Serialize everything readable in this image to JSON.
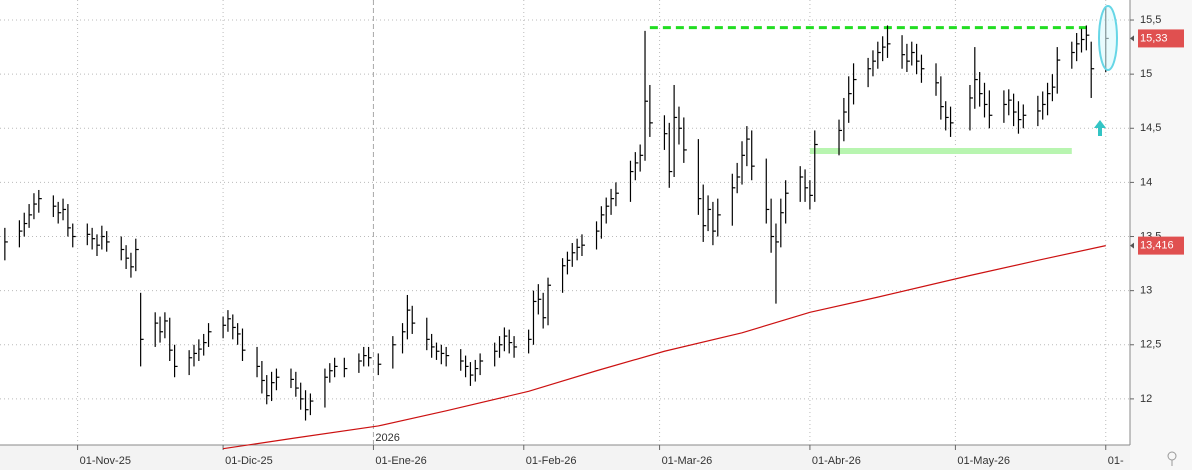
{
  "chart_data": {
    "type": "ohlc",
    "x": [
      "2025-10-17",
      "2025-10-20",
      "2025-10-21",
      "2025-10-22",
      "2025-10-23",
      "2025-10-24",
      "2025-10-27",
      "2025-10-28",
      "2025-10-29",
      "2025-10-30",
      "2025-10-31",
      "2025-11-03",
      "2025-11-04",
      "2025-11-05",
      "2025-11-06",
      "2025-11-07",
      "2025-11-10",
      "2025-11-11",
      "2025-11-12",
      "2025-11-13",
      "2025-11-14",
      "2025-11-17",
      "2025-11-18",
      "2025-11-19",
      "2025-11-20",
      "2025-11-21",
      "2025-11-24",
      "2025-11-25",
      "2025-11-26",
      "2025-11-27",
      "2025-11-28",
      "2025-12-01",
      "2025-12-02",
      "2025-12-03",
      "2025-12-04",
      "2025-12-05",
      "2025-12-08",
      "2025-12-09",
      "2025-12-10",
      "2025-12-11",
      "2025-12-12",
      "2025-12-15",
      "2025-12-16",
      "2025-12-17",
      "2025-12-18",
      "2025-12-19",
      "2025-12-22",
      "2025-12-23",
      "2025-12-24",
      "2025-12-26",
      "2025-12-29",
      "2025-12-30",
      "2025-12-31",
      "2026-01-02",
      "2026-01-05",
      "2026-01-07",
      "2026-01-08",
      "2026-01-09",
      "2026-01-12",
      "2026-01-13",
      "2026-01-14",
      "2026-01-15",
      "2026-01-16",
      "2026-01-19",
      "2026-01-20",
      "2026-01-21",
      "2026-01-22",
      "2026-01-23",
      "2026-01-26",
      "2026-01-27",
      "2026-01-28",
      "2026-01-29",
      "2026-01-30",
      "2026-02-02",
      "2026-02-03",
      "2026-02-04",
      "2026-02-05",
      "2026-02-06",
      "2026-02-09",
      "2026-02-10",
      "2026-02-11",
      "2026-02-12",
      "2026-02-13",
      "2026-02-16",
      "2026-02-17",
      "2026-02-18",
      "2026-02-19",
      "2026-02-20",
      "2026-02-23",
      "2026-02-24",
      "2026-02-25",
      "2026-02-26",
      "2026-02-27",
      "2026-03-02",
      "2026-03-03",
      "2026-03-04",
      "2026-03-05",
      "2026-03-06",
      "2026-03-09",
      "2026-03-10",
      "2026-03-11",
      "2026-03-12",
      "2026-03-13",
      "2026-03-16",
      "2026-03-17",
      "2026-03-18",
      "2026-03-19",
      "2026-03-20",
      "2026-03-23",
      "2026-03-24",
      "2026-03-25",
      "2026-03-26",
      "2026-03-27",
      "2026-03-30",
      "2026-03-31",
      "2026-04-01",
      "2026-04-02",
      "2026-04-07",
      "2026-04-08",
      "2026-04-09",
      "2026-04-10",
      "2026-04-13",
      "2026-04-14",
      "2026-04-15",
      "2026-04-16",
      "2026-04-17",
      "2026-04-20",
      "2026-04-21",
      "2026-04-22",
      "2026-04-23",
      "2026-04-24",
      "2026-04-27",
      "2026-04-28",
      "2026-04-29",
      "2026-04-30",
      "2026-05-04",
      "2026-05-05",
      "2026-05-06",
      "2026-05-07",
      "2026-05-08",
      "2026-05-11",
      "2026-05-12",
      "2026-05-13",
      "2026-05-14",
      "2026-05-15",
      "2026-05-18",
      "2026-05-19",
      "2026-05-20",
      "2026-05-21",
      "2026-05-22",
      "2026-05-25",
      "2026-05-26",
      "2026-05-27",
      "2026-05-28",
      "2026-05-29",
      "2026-06-01"
    ],
    "high": [
      13.58,
      13.65,
      13.72,
      13.8,
      13.9,
      13.93,
      13.88,
      13.82,
      13.85,
      13.8,
      13.62,
      13.62,
      13.58,
      13.52,
      13.6,
      13.55,
      13.5,
      13.42,
      13.35,
      13.48,
      12.98,
      12.8,
      12.76,
      12.8,
      12.75,
      12.5,
      12.45,
      12.5,
      12.55,
      12.6,
      12.7,
      12.76,
      12.82,
      12.78,
      12.7,
      12.65,
      12.48,
      12.35,
      12.22,
      12.25,
      12.28,
      12.28,
      12.25,
      12.15,
      12.08,
      12.05,
      12.28,
      12.33,
      12.38,
      12.38,
      12.42,
      12.48,
      12.48,
      12.42,
      12.58,
      12.7,
      12.96,
      12.86,
      12.75,
      12.6,
      12.52,
      12.5,
      12.48,
      12.46,
      12.4,
      12.34,
      12.36,
      12.42,
      12.52,
      12.58,
      12.66,
      12.64,
      12.58,
      12.64,
      13.0,
      13.06,
      12.98,
      13.12,
      13.3,
      13.36,
      13.44,
      13.48,
      13.52,
      13.64,
      13.78,
      13.86,
      13.94,
      14.0,
      14.2,
      14.28,
      14.35,
      15.4,
      14.9,
      14.62,
      14.55,
      14.9,
      14.7,
      14.6,
      14.4,
      13.98,
      13.88,
      13.82,
      13.85,
      14.08,
      14.18,
      14.38,
      14.52,
      14.48,
      14.22,
      13.85,
      13.62,
      13.85,
      14.02,
      14.15,
      14.12,
      14.02,
      14.48,
      14.58,
      14.78,
      14.98,
      15.1,
      15.15,
      15.22,
      15.3,
      15.35,
      15.45,
      15.36,
      15.28,
      15.3,
      15.28,
      15.18,
      15.1,
      14.98,
      14.75,
      14.7,
      14.9,
      15.25,
      15.02,
      14.92,
      14.85,
      14.85,
      14.86,
      14.82,
      14.75,
      14.72,
      14.8,
      14.84,
      14.92,
      15.0,
      15.25,
      15.3,
      15.38,
      15.42,
      15.45,
      15.3,
      15.62
    ],
    "low": [
      13.28,
      13.4,
      13.5,
      13.58,
      13.66,
      13.72,
      13.68,
      13.62,
      13.65,
      13.5,
      13.4,
      13.42,
      13.38,
      13.32,
      13.38,
      13.36,
      13.28,
      13.2,
      13.12,
      13.18,
      12.3,
      12.48,
      12.52,
      12.56,
      12.35,
      12.2,
      12.22,
      12.3,
      12.35,
      12.4,
      12.48,
      12.56,
      12.62,
      12.55,
      12.5,
      12.35,
      12.2,
      12.05,
      11.95,
      11.98,
      12.08,
      12.1,
      12.02,
      11.9,
      11.8,
      11.85,
      11.92,
      12.15,
      12.2,
      12.2,
      12.24,
      12.3,
      12.3,
      12.22,
      12.28,
      12.42,
      12.55,
      12.6,
      12.45,
      12.38,
      12.36,
      12.32,
      12.3,
      12.26,
      12.2,
      12.12,
      12.16,
      12.22,
      12.3,
      12.38,
      12.44,
      12.42,
      12.38,
      12.42,
      12.5,
      12.78,
      12.65,
      12.68,
      12.98,
      13.15,
      13.22,
      13.28,
      13.32,
      13.38,
      13.48,
      13.62,
      13.7,
      13.78,
      13.82,
      14.02,
      14.1,
      14.2,
      14.42,
      14.3,
      13.95,
      14.05,
      14.35,
      14.18,
      13.7,
      13.45,
      13.55,
      13.42,
      13.5,
      13.6,
      13.9,
      13.98,
      14.15,
      14.02,
      13.62,
      13.35,
      12.88,
      13.4,
      13.62,
      13.82,
      13.82,
      13.75,
      13.82,
      14.25,
      14.38,
      14.55,
      14.72,
      14.88,
      14.98,
      15.05,
      15.12,
      15.15,
      15.05,
      15.02,
      15.08,
      15.0,
      14.92,
      14.8,
      14.58,
      14.48,
      14.42,
      14.48,
      14.68,
      14.7,
      14.6,
      14.5,
      14.55,
      14.62,
      14.52,
      14.45,
      14.5,
      14.52,
      14.58,
      14.62,
      14.75,
      14.82,
      15.05,
      15.12,
      15.2,
      15.22,
      14.78,
      15.02
    ],
    "close": [
      13.45,
      13.55,
      13.62,
      13.7,
      13.8,
      13.85,
      13.78,
      13.72,
      13.75,
      13.58,
      13.5,
      13.52,
      13.48,
      13.42,
      13.5,
      13.45,
      13.38,
      13.3,
      13.22,
      13.38,
      12.55,
      12.7,
      12.62,
      12.72,
      12.45,
      12.3,
      12.38,
      12.42,
      12.46,
      12.52,
      12.62,
      12.68,
      12.74,
      12.66,
      12.6,
      12.45,
      12.3,
      12.17,
      12.03,
      12.15,
      12.2,
      12.18,
      12.1,
      12.0,
      11.9,
      11.98,
      12.2,
      12.26,
      12.3,
      12.28,
      12.35,
      12.4,
      12.38,
      12.32,
      12.5,
      12.62,
      12.82,
      12.7,
      12.55,
      12.48,
      12.44,
      12.42,
      12.4,
      12.35,
      12.3,
      12.22,
      12.28,
      12.35,
      12.44,
      12.5,
      12.58,
      12.52,
      12.48,
      12.55,
      12.9,
      12.92,
      12.75,
      13.05,
      13.23,
      13.28,
      13.35,
      13.4,
      13.42,
      13.55,
      13.7,
      13.78,
      13.85,
      13.9,
      14.1,
      14.18,
      14.25,
      14.75,
      14.55,
      14.45,
      14.1,
      14.6,
      14.5,
      14.3,
      13.85,
      13.6,
      13.75,
      13.55,
      13.7,
      13.95,
      14.05,
      14.25,
      14.4,
      14.15,
      13.75,
      13.5,
      13.45,
      13.72,
      13.9,
      14.05,
      13.95,
      13.88,
      14.35,
      14.48,
      14.65,
      14.82,
      14.95,
      15.05,
      15.12,
      15.2,
      15.25,
      15.28,
      15.18,
      15.12,
      15.2,
      15.12,
      15.05,
      14.92,
      14.7,
      14.6,
      14.55,
      14.78,
      14.95,
      14.82,
      14.72,
      14.62,
      14.72,
      14.76,
      14.65,
      14.58,
      14.62,
      14.66,
      14.72,
      14.82,
      14.88,
      15.13,
      15.2,
      15.28,
      15.32,
      15.36,
      15.05,
      15.33
    ],
    "color": "#000000",
    "moving_average": {
      "color": "#cc1111",
      "x": [
        "2025-12-01",
        "2025-12-16",
        "2026-01-02",
        "2026-01-16",
        "2026-02-02",
        "2026-02-16",
        "2026-03-02",
        "2026-03-18",
        "2026-04-01",
        "2026-04-15",
        "2026-05-04",
        "2026-05-18",
        "2026-06-01"
      ],
      "values": [
        11.54,
        11.64,
        11.75,
        11.89,
        12.07,
        12.26,
        12.44,
        12.61,
        12.8,
        12.94,
        13.14,
        13.28,
        13.416
      ]
    },
    "levels": [
      {
        "value": 15.43,
        "color": "#22dd22",
        "style": "dashed",
        "from": "2026-02-27",
        "to": "2026-05-29"
      },
      {
        "value": 14.29,
        "color": "#b8f5b0",
        "style": "solid",
        "from": "2026-04-01",
        "to": "2026-05-25"
      }
    ],
    "last_price": {
      "value": 15.33,
      "label": "15,33",
      "color": "#e05050"
    },
    "ma_label": {
      "value": 13.416,
      "label": "13,416",
      "color": "#e05050"
    },
    "year_marker": {
      "x": "2026-01-01",
      "label": "2026"
    },
    "xlim": [
      "2025-10-16",
      "2026-06-06"
    ],
    "xticks": [
      {
        "value": "2025-11-01",
        "label": "01-Nov-25"
      },
      {
        "value": "2025-12-01",
        "label": "01-Dic-25"
      },
      {
        "value": "2026-01-01",
        "label": "01-Ene-26"
      },
      {
        "value": "2026-02-01",
        "label": "01-Feb-26"
      },
      {
        "value": "2026-03-01",
        "label": "01-Mar-26"
      },
      {
        "value": "2026-04-01",
        "label": "01-Abr-26"
      },
      {
        "value": "2026-05-01",
        "label": "01-May-26"
      },
      {
        "value": "2026-06-01",
        "label": "01-"
      }
    ],
    "ylim": [
      11.574,
      15.685
    ],
    "yticks": [
      12,
      {
        "value": 12.5,
        "label": "12,5"
      },
      13,
      {
        "value": 13.5,
        "label": "13,5"
      },
      14,
      {
        "value": 14.5,
        "label": "14,5"
      },
      15,
      {
        "value": 15.5,
        "label": "15,5"
      }
    ],
    "grid": true
  }
}
